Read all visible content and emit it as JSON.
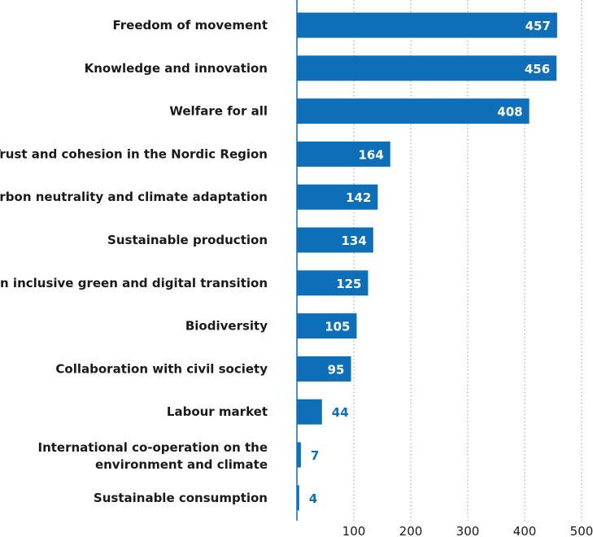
{
  "chart_data": {
    "type": "bar",
    "orientation": "horizontal",
    "categories": [
      "Freedom of movement",
      "Knowledge and innovation",
      "Welfare for all",
      "Trust and cohesion in the Nordic Region",
      "Carbon neutrality and climate adaptation",
      "Sustainable production",
      "An inclusive green and digital transition",
      "Biodiversity",
      "Collaboration with civil society",
      "Labour market",
      "International co-operation on the environment and climate",
      "Sustainable consumption"
    ],
    "values": [
      457,
      456,
      408,
      164,
      142,
      134,
      125,
      105,
      95,
      44,
      7,
      4
    ],
    "xticks": [
      100,
      200,
      300,
      400,
      500
    ],
    "xlim": [
      0,
      520
    ],
    "grid": true,
    "bar_color": "#0e6fb8",
    "title": "",
    "xlabel": "",
    "ylabel": ""
  }
}
